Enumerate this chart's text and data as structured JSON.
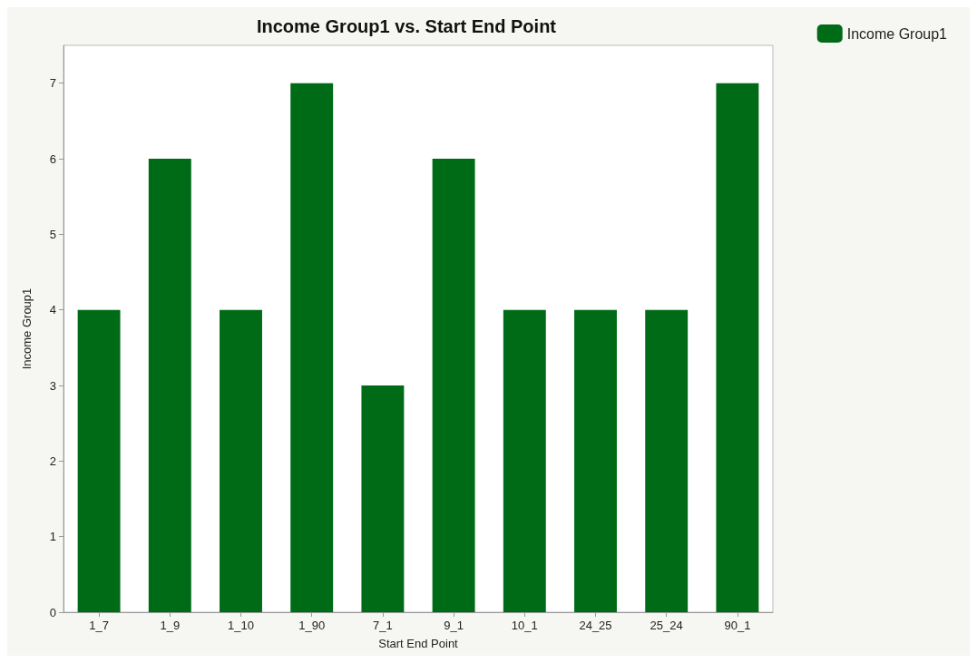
{
  "chart_data": {
    "type": "bar",
    "title": "Income Group1 vs. Start End Point",
    "xlabel": "Start End Point",
    "ylabel": "Income Group1",
    "categories": [
      "1_7",
      "1_9",
      "1_10",
      "1_90",
      "7_1",
      "9_1",
      "10_1",
      "24_25",
      "25_24",
      "90_1"
    ],
    "series": [
      {
        "name": "Income Group1",
        "color": "#006b17",
        "values": [
          4,
          6,
          4,
          7,
          3,
          6,
          4,
          4,
          4,
          7
        ]
      }
    ],
    "ylim": [
      0,
      7.5
    ],
    "yticks": [
      0,
      1,
      2,
      3,
      4,
      5,
      6,
      7
    ],
    "grid": false,
    "legend": "top right"
  }
}
